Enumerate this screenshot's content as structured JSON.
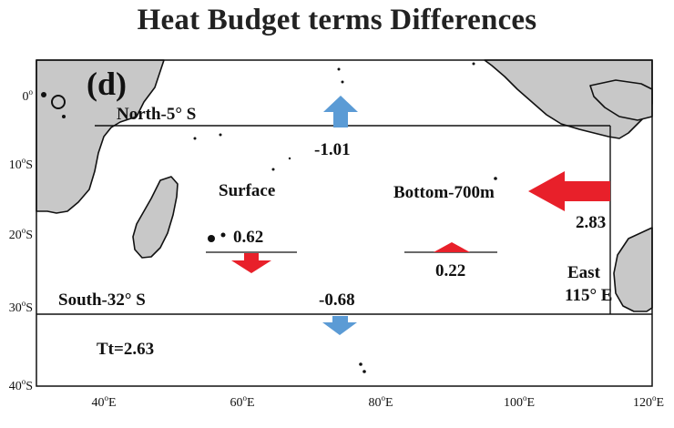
{
  "title": "Heat Budget terms Differences",
  "panel_label": "(d)",
  "axes": {
    "lat_ticks": [
      {
        "main": "0",
        "sup": "o",
        "suffix": ""
      },
      {
        "main": "10",
        "sup": "o",
        "suffix": "S"
      },
      {
        "main": "20",
        "sup": "o",
        "suffix": "S"
      },
      {
        "main": "30",
        "sup": "o",
        "suffix": "S"
      },
      {
        "main": "40",
        "sup": "o",
        "suffix": "S"
      }
    ],
    "lon_ticks": [
      {
        "main": "40",
        "sup": "o",
        "suffix": "E"
      },
      {
        "main": "60",
        "sup": "o",
        "suffix": "E"
      },
      {
        "main": "80",
        "sup": "o",
        "suffix": "E"
      },
      {
        "main": "100",
        "sup": "o",
        "suffix": "E"
      },
      {
        "main": "120",
        "sup": "o",
        "suffix": "E"
      }
    ]
  },
  "boundaries": {
    "north": "North-5°  S",
    "south": "South-32°  S",
    "east_line1": "East",
    "east_line2": "115°  E"
  },
  "fluxes": {
    "north": "-1.01",
    "east": "2.83",
    "surface_label": "Surface",
    "surface": "0.62",
    "bottom_label": "Bottom-700m",
    "bottom": "0.22",
    "south": "-0.68",
    "total": "Tt=2.63"
  },
  "colors": {
    "red": "#e8202a",
    "blue": "#5b9bd5",
    "land": "#c8c8c8",
    "coast": "#111111"
  }
}
